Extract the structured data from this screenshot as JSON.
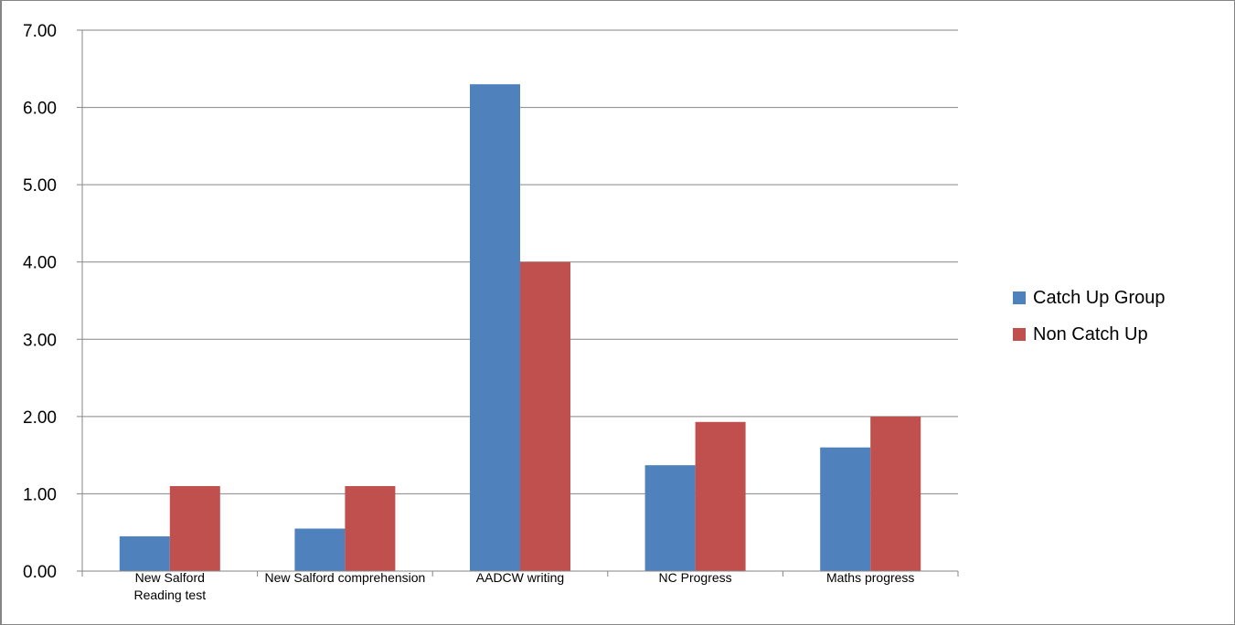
{
  "chart_data": {
    "type": "bar",
    "categories": [
      [
        "New Salford",
        "Reading test"
      ],
      [
        "New Salford comprehension"
      ],
      [
        "AADCW writing"
      ],
      [
        "NC Progress"
      ],
      [
        "Maths progress"
      ]
    ],
    "series": [
      {
        "name": "Catch Up Group",
        "color": "#4f81bd",
        "values": [
          0.45,
          0.55,
          6.3,
          1.37,
          1.6
        ]
      },
      {
        "name": "Non Catch Up",
        "color": "#c0504d",
        "values": [
          1.1,
          1.1,
          4.0,
          1.93,
          2.0
        ]
      }
    ],
    "yticks": [
      "0.00",
      "1.00",
      "2.00",
      "3.00",
      "4.00",
      "5.00",
      "6.00",
      "7.00"
    ],
    "ylim": [
      0,
      7
    ],
    "grid": true,
    "legend_position": "right"
  }
}
